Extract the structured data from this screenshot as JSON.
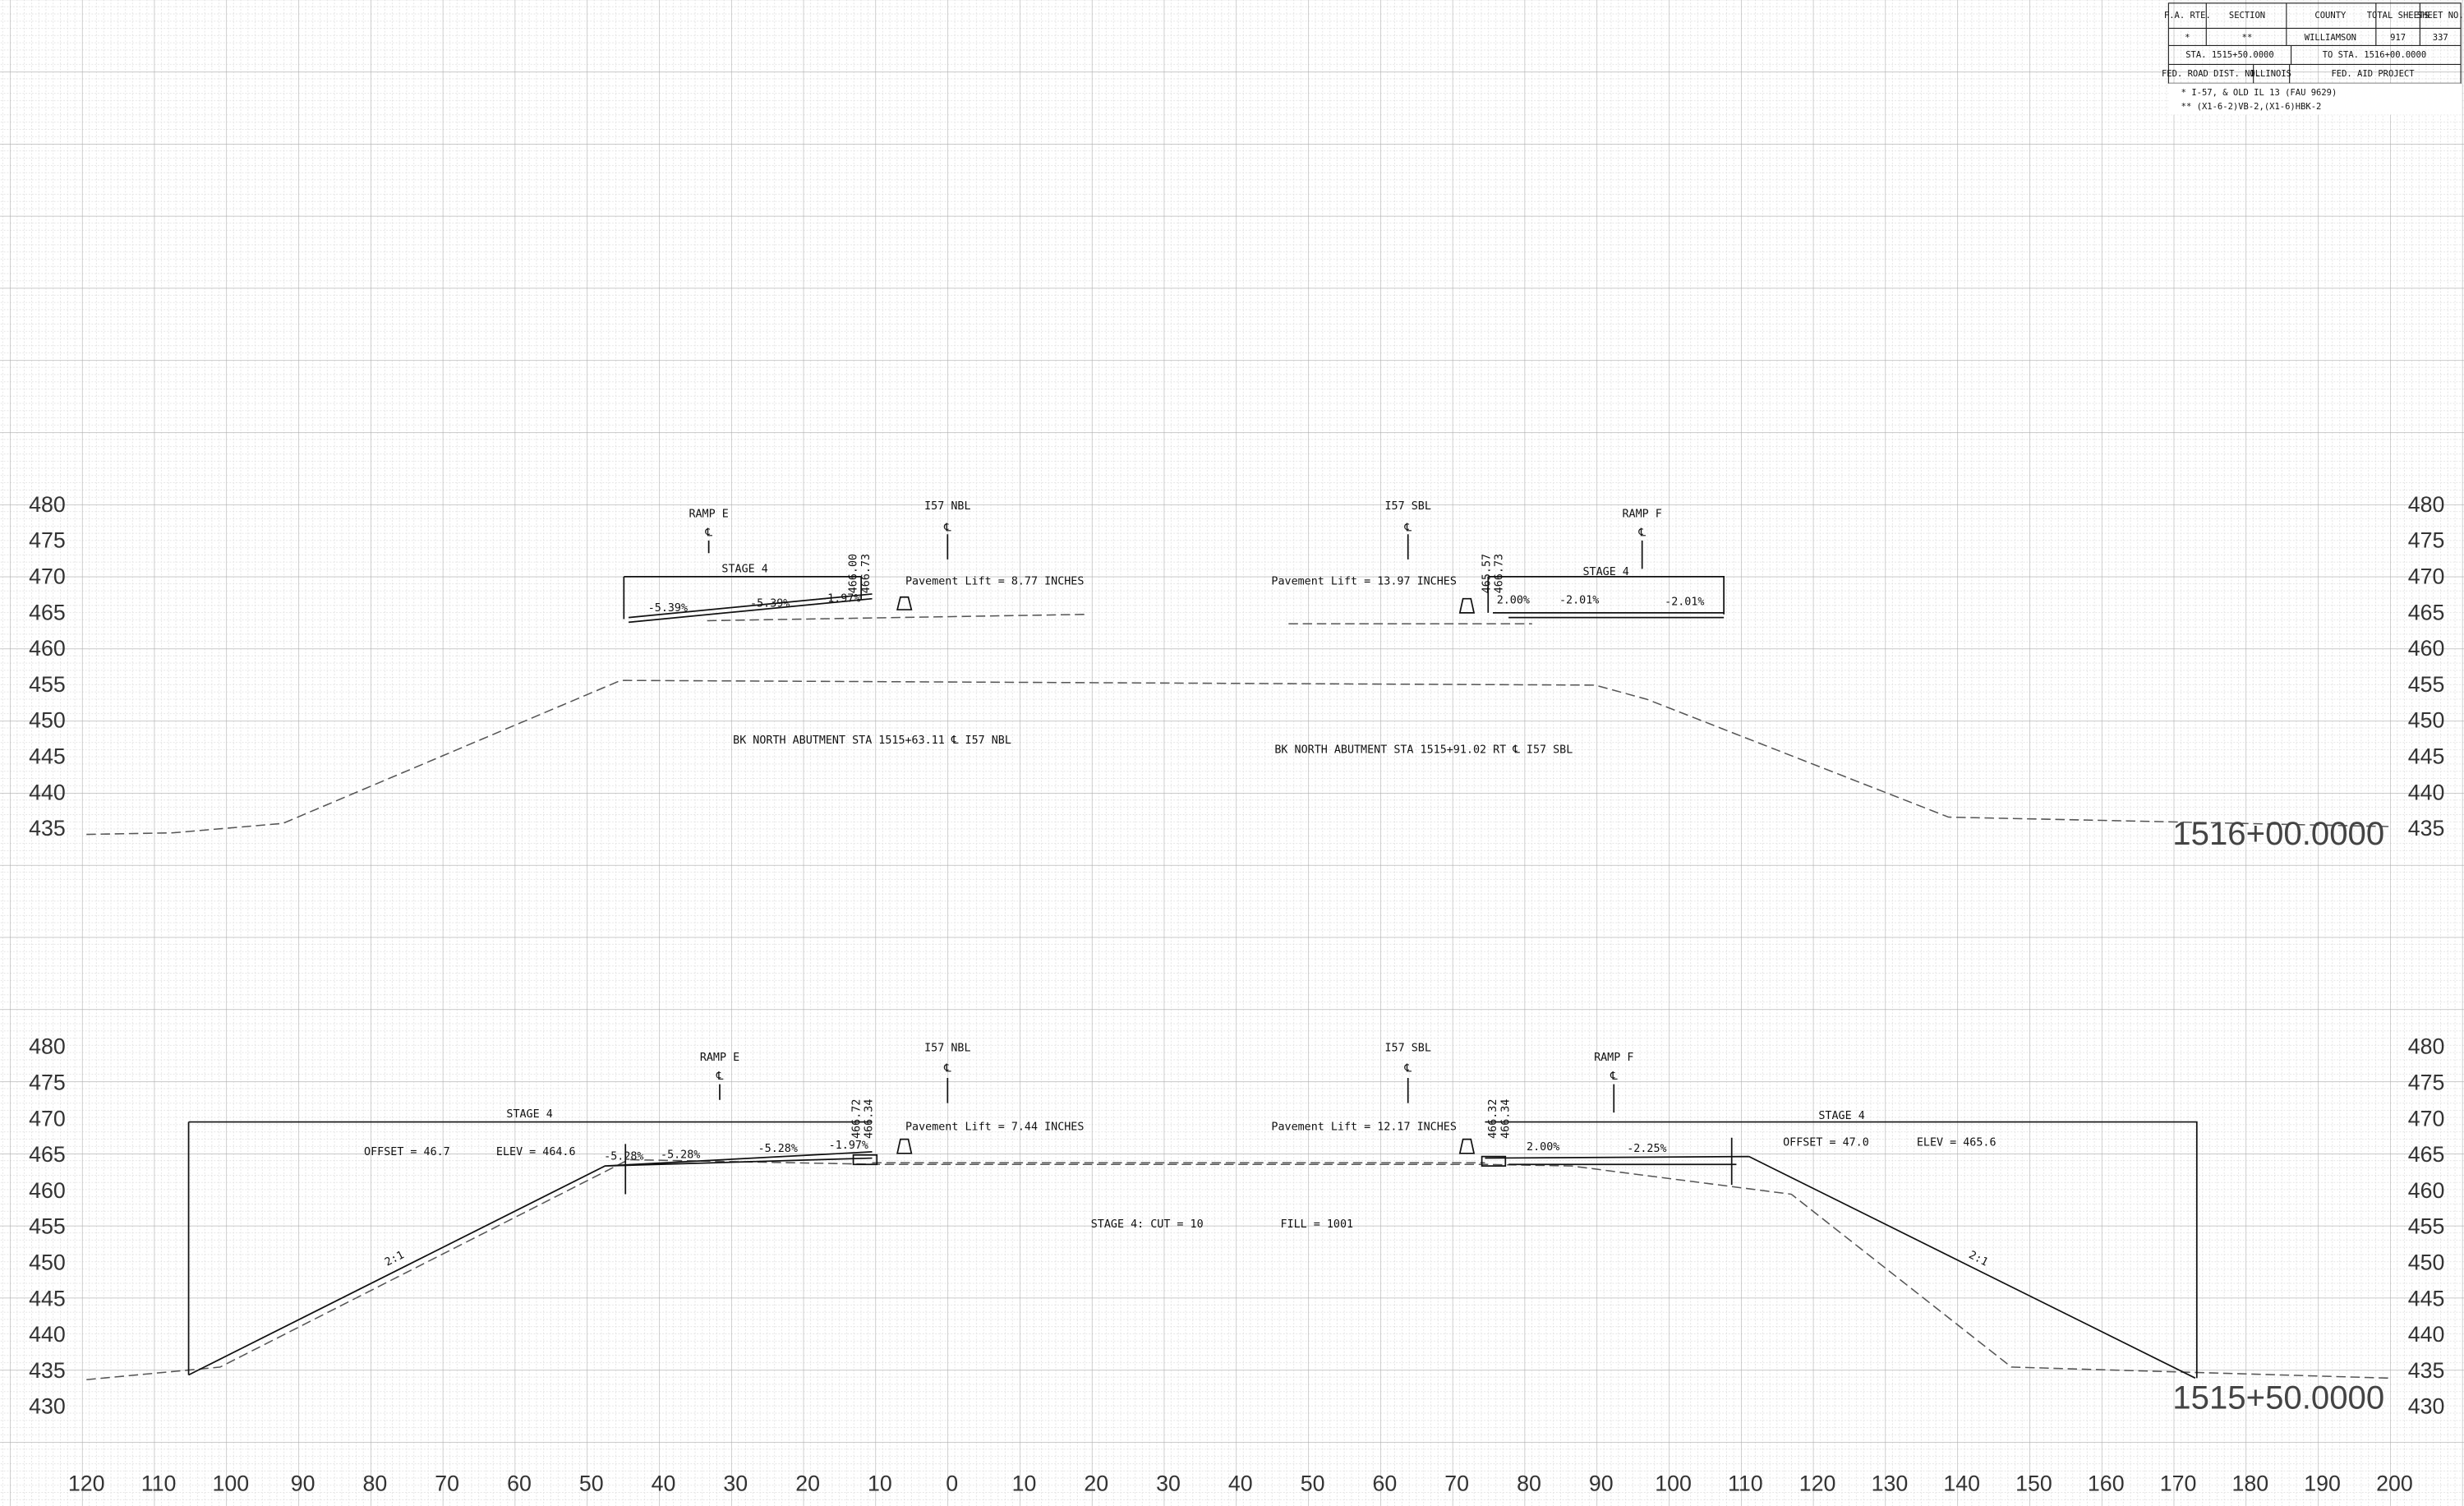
{
  "title_block": {
    "headers": [
      "F.A. RTE.",
      "SECTION",
      "COUNTY",
      "TOTAL SHEETS",
      "SHEET NO."
    ],
    "row": [
      "*",
      "**",
      "WILLIAMSON",
      "917",
      "337"
    ],
    "stations": [
      "STA. 1515+50.0000",
      "TO STA. 1516+00.0000"
    ],
    "district": [
      "FED. ROAD DIST. NO.",
      "ILLINOIS",
      "FED. AID PROJECT"
    ],
    "notes": [
      "* I-57, & OLD IL 13 (FAU 9629)",
      "** (X1-6-2)VB-2,(X1-6)HBK-2"
    ]
  },
  "axes": {
    "offsets": [
      "120",
      "110",
      "100",
      "90",
      "80",
      "70",
      "60",
      "50",
      "40",
      "30",
      "20",
      "10",
      "0",
      "10",
      "20",
      "30",
      "40",
      "50",
      "60",
      "70",
      "80",
      "90",
      "100",
      "110",
      "120",
      "130",
      "140",
      "150",
      "160",
      "170",
      "180",
      "190",
      "200"
    ],
    "elevations_top": [
      "480",
      "475",
      "470",
      "465",
      "460",
      "455",
      "450",
      "445",
      "440",
      "435"
    ],
    "elevations_bottom": [
      "480",
      "475",
      "470",
      "465",
      "460",
      "455",
      "450",
      "445",
      "440",
      "435",
      "430"
    ]
  },
  "sections": [
    {
      "annotations": [
        "RAMP E",
        "℄",
        "I57 NBL",
        "℄",
        "I57 SBL",
        "℄",
        "RAMP F",
        "℄",
        "STAGE 4",
        "STAGE 4",
        "Pavement Lift = 8.77 INCHES",
        "Pavement Lift = 13.97 INCHES",
        "-5.39%",
        "-5.39%",
        "-1.97%",
        "466.00",
        "466.73",
        "465.57",
        "466.73",
        "2.00%",
        "-2.01%",
        "-2.01%",
        "BK NORTH ABUTMENT STA 1515+63.11 ℄ I57 NBL",
        "BK NORTH ABUTMENT STA 1515+91.02 RT ℄ I57 SBL",
        "1516+00.0000"
      ]
    },
    {
      "annotations": [
        "STAGE 4",
        "RAMP E",
        "℄",
        "I57 NBL",
        "℄",
        "I57 SBL",
        "℄",
        "RAMP F",
        "℄",
        "STAGE 4",
        "OFFSET = 46.7",
        "ELEV = 464.6",
        "-5.28%",
        "-5.28%",
        "-5.28%",
        "-1.97%",
        "466.72",
        "466.34",
        "Pavement Lift = 7.44 INCHES",
        "Pavement Lift = 12.17 INCHES",
        "466.32",
        "466.34",
        "2.00%",
        "-2.25%",
        "OFFSET = 47.0",
        "ELEV = 465.6",
        "STAGE 4:  CUT = 10",
        "FILL = 1001",
        "2:1",
        "2:1",
        "1515+50.0000"
      ]
    }
  ]
}
